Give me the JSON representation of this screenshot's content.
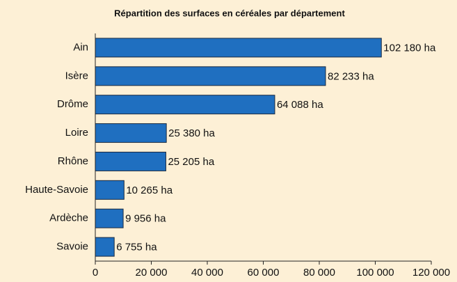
{
  "chart_data": {
    "type": "bar",
    "orientation": "horizontal",
    "title": "Répartition des surfaces en céréales par département",
    "categories": [
      "Ain",
      "Isère",
      "Drôme",
      "Loire",
      "Rhône",
      "Haute-Savoie",
      "Ardèche",
      "Savoie"
    ],
    "values": [
      102180,
      82233,
      64088,
      25380,
      25205,
      10265,
      9956,
      6755
    ],
    "value_labels": [
      "102 180 ha",
      "82 233 ha",
      "64 088 ha",
      "25 380 ha",
      "25 205 ha",
      "10 265 ha",
      "9 956 ha",
      "6 755 ha"
    ],
    "color": "#1f6fc0",
    "xlim": [
      0,
      120000
    ],
    "xticks": [
      0,
      {
        "value": 20000,
        "label": "20 000"
      },
      {
        "value": 40000,
        "label": "40 000"
      },
      {
        "value": 60000,
        "label": "60 000"
      },
      {
        "value": 80000,
        "label": "80 000"
      },
      {
        "value": 100000,
        "label": "100 000"
      },
      {
        "value": 120000,
        "label": "120 000"
      }
    ],
    "grid": false
  }
}
